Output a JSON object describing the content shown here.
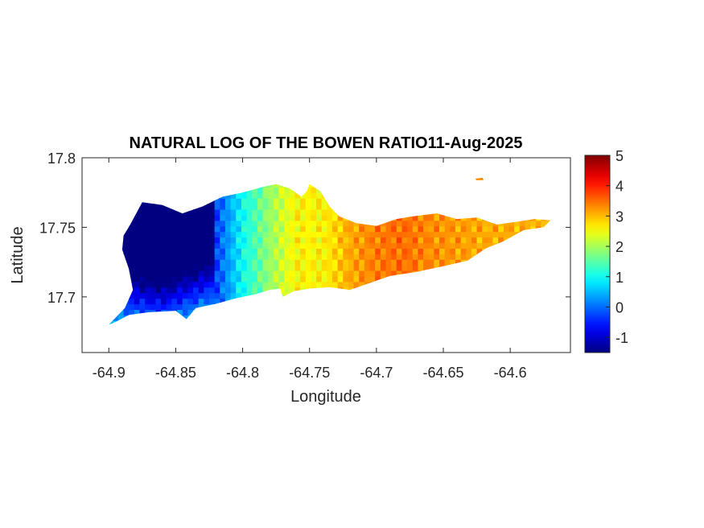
{
  "chart_data": {
    "type": "heatmap",
    "title": "NATURAL LOG OF THE BOWEN RATIO11-Aug-2025",
    "xlabel": "Longitude",
    "ylabel": "Latitude",
    "xlim": [
      -64.92,
      -64.555
    ],
    "ylim": [
      17.66,
      17.8
    ],
    "xticks": [
      -64.9,
      -64.85,
      -64.8,
      -64.75,
      -64.7,
      -64.65,
      -64.6
    ],
    "xtick_labels": [
      "-64.9",
      "-64.85",
      "-64.8",
      "-64.75",
      "-64.7",
      "-64.65",
      "-64.6"
    ],
    "yticks": [
      17.7,
      17.75,
      17.8
    ],
    "ytick_labels": [
      "17.7",
      "17.75",
      "17.8"
    ],
    "colorbar": {
      "colormap": "jet",
      "clim": [
        -1.5,
        5
      ],
      "ticks": [
        -1,
        0,
        1,
        2,
        3,
        4,
        5
      ],
      "tick_labels": [
        "-1",
        "0",
        "1",
        "2",
        "3",
        "4",
        "5"
      ]
    },
    "island_outline": [
      [
        -64.9,
        17.68
      ],
      [
        -64.888,
        17.692
      ],
      [
        -64.882,
        17.705
      ],
      [
        -64.885,
        17.72
      ],
      [
        -64.89,
        17.734
      ],
      [
        -64.889,
        17.744
      ],
      [
        -64.884,
        17.752
      ],
      [
        -64.875,
        17.768
      ],
      [
        -64.86,
        17.766
      ],
      [
        -64.845,
        17.76
      ],
      [
        -64.83,
        17.765
      ],
      [
        -64.815,
        17.772
      ],
      [
        -64.8,
        17.775
      ],
      [
        -64.785,
        17.779
      ],
      [
        -64.775,
        17.781
      ],
      [
        -64.765,
        17.778
      ],
      [
        -64.756,
        17.772
      ],
      [
        -64.752,
        17.776
      ],
      [
        -64.75,
        17.781
      ],
      [
        -64.742,
        17.776
      ],
      [
        -64.735,
        17.765
      ],
      [
        -64.728,
        17.758
      ],
      [
        -64.715,
        17.753
      ],
      [
        -64.7,
        17.751
      ],
      [
        -64.685,
        17.756
      ],
      [
        -64.672,
        17.758
      ],
      [
        -64.655,
        17.76
      ],
      [
        -64.64,
        17.756
      ],
      [
        -64.625,
        17.757
      ],
      [
        -64.61,
        17.752
      ],
      [
        -64.595,
        17.754
      ],
      [
        -64.582,
        17.756
      ],
      [
        -64.57,
        17.755
      ],
      [
        -64.575,
        17.75
      ],
      [
        -64.59,
        17.748
      ],
      [
        -64.605,
        17.74
      ],
      [
        -64.618,
        17.735
      ],
      [
        -64.632,
        17.726
      ],
      [
        -64.65,
        17.722
      ],
      [
        -64.67,
        17.718
      ],
      [
        -64.69,
        17.715
      ],
      [
        -64.705,
        17.71
      ],
      [
        -64.72,
        17.705
      ],
      [
        -64.735,
        17.707
      ],
      [
        -64.75,
        17.706
      ],
      [
        -64.762,
        17.704
      ],
      [
        -64.77,
        17.7
      ],
      [
        -64.772,
        17.706
      ],
      [
        -64.78,
        17.705
      ],
      [
        -64.79,
        17.702
      ],
      [
        -64.805,
        17.699
      ],
      [
        -64.82,
        17.695
      ],
      [
        -64.835,
        17.692
      ],
      [
        -64.842,
        17.684
      ],
      [
        -64.85,
        17.69
      ],
      [
        -64.87,
        17.689
      ],
      [
        -64.885,
        17.687
      ],
      [
        -64.895,
        17.682
      ],
      [
        -64.9,
        17.68
      ]
    ],
    "value_field": [
      [
        -64.885,
        -1.0
      ],
      [
        -64.86,
        -1.3
      ],
      [
        -64.84,
        -0.8
      ],
      [
        -64.82,
        -0.3
      ],
      [
        -64.8,
        1.0
      ],
      [
        -64.78,
        1.9
      ],
      [
        -64.76,
        2.6
      ],
      [
        -64.74,
        2.6
      ],
      [
        -64.72,
        3.1
      ],
      [
        -64.7,
        3.4
      ],
      [
        -64.68,
        3.5
      ],
      [
        -64.66,
        3.3
      ],
      [
        -64.64,
        3.2
      ],
      [
        -64.62,
        3.1
      ],
      [
        -64.6,
        3.1
      ],
      [
        -64.57,
        3.0
      ]
    ]
  }
}
